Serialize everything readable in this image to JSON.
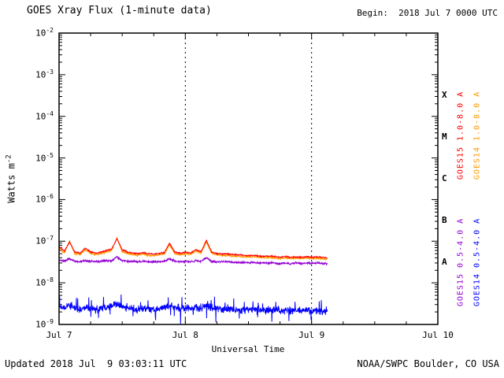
{
  "header": {
    "title": "GOES Xray Flux (1-minute data)",
    "begin": "Begin:  2018 Jul 7 0000 UTC"
  },
  "footer": {
    "updated": "Updated 2018 Jul  9 03:03:11 UTC",
    "source": "NOAA/SWPC Boulder, CO USA"
  },
  "chart_data": {
    "type": "line",
    "title": "GOES Xray Flux (1-minute data)",
    "xlabel": "Universal Time",
    "ylabel": "Watts m-2",
    "ylabel_base": "Watts m",
    "ylabel_exp": "-2",
    "x_tick_labels": [
      "Jul 7",
      "Jul 8",
      "Jul 9",
      "Jul 10"
    ],
    "x_tick_hours": [
      0,
      24,
      48,
      72
    ],
    "x_range_hours": [
      0,
      72
    ],
    "x_minor_step_hours": 6,
    "y_log_range": [
      -9,
      -2
    ],
    "y_tick_exponents": [
      -2,
      -3,
      -4,
      -5,
      -6,
      -7,
      -8,
      -9
    ],
    "grid_dashed_hours": [
      24,
      48
    ],
    "flux_classes": [
      {
        "label": "X",
        "log_center": -3.5
      },
      {
        "label": "M",
        "log_center": -4.5
      },
      {
        "label": "C",
        "log_center": -5.5
      },
      {
        "label": "B",
        "log_center": -6.5
      },
      {
        "label": "A",
        "log_center": -7.5
      }
    ],
    "sample_interval_hours": 1,
    "series": [
      {
        "name": "GOES15 1.0-8.0 A",
        "color": "#ff0000",
        "noise_log": 0.02,
        "seed": 11,
        "values": [
          7.5e-08,
          5.8e-08,
          9.5e-08,
          5.5e-08,
          5.2e-08,
          6.8e-08,
          5.6e-08,
          5.2e-08,
          5.5e-08,
          6e-08,
          6.5e-08,
          1.15e-07,
          6.2e-08,
          5.5e-08,
          5.2e-08,
          5e-08,
          5.3e-08,
          5e-08,
          4.9e-08,
          5.1e-08,
          5.3e-08,
          9e-08,
          5.5e-08,
          5.1e-08,
          5.4e-08,
          5.2e-08,
          6.3e-08,
          5.6e-08,
          1.05e-07,
          5.5e-08,
          5.1e-08,
          4.9e-08,
          5e-08,
          4.8e-08,
          4.7e-08,
          4.6e-08,
          4.5e-08,
          4.6e-08,
          4.4e-08,
          4.3e-08,
          4.4e-08,
          4.3e-08,
          4.1e-08,
          4.3e-08,
          4.1e-08,
          4.2e-08,
          4.1e-08,
          4.3e-08,
          4.1e-08,
          4.2e-08,
          4.1e-08,
          4e-08
        ]
      },
      {
        "name": "GOES14 1.0-8.0 A",
        "color": "#ff9900",
        "noise_log": 0.025,
        "seed": 22,
        "values": [
          6.8e-08,
          5.2e-08,
          1e-07,
          5e-08,
          4.8e-08,
          6.2e-08,
          5.1e-08,
          4.8e-08,
          5e-08,
          5.5e-08,
          6e-08,
          1.2e-07,
          5.6e-08,
          5e-08,
          4.8e-08,
          4.6e-08,
          4.9e-08,
          4.6e-08,
          4.5e-08,
          4.7e-08,
          4.9e-08,
          8.2e-08,
          5e-08,
          4.7e-08,
          5e-08,
          4.8e-08,
          5.8e-08,
          5.2e-08,
          9.6e-08,
          5.1e-08,
          4.7e-08,
          4.5e-08,
          4.6e-08,
          4.4e-08,
          4.3e-08,
          4.2e-08,
          4.2e-08,
          4.3e-08,
          4.1e-08,
          4e-08,
          4.1e-08,
          4e-08,
          3.8e-08,
          4e-08,
          3.8e-08,
          3.9e-08,
          3.8e-08,
          4e-08,
          3.8e-08,
          3.9e-08,
          3.8e-08,
          3.7e-08
        ]
      },
      {
        "name": "GOES15 0.5-4.0 A",
        "color": "#9400d3",
        "noise_log": 0.035,
        "seed": 33,
        "values": [
          3.5e-08,
          3.3e-08,
          3.8e-08,
          3.3e-08,
          3.2e-08,
          3.4e-08,
          3.3e-08,
          3.2e-08,
          3.3e-08,
          3.4e-08,
          3.4e-08,
          4.2e-08,
          3.4e-08,
          3.3e-08,
          3.3e-08,
          3.2e-08,
          3.3e-08,
          3.2e-08,
          3.2e-08,
          3.2e-08,
          3.3e-08,
          3.8e-08,
          3.3e-08,
          3.2e-08,
          3.3e-08,
          3.2e-08,
          3.4e-08,
          3.3e-08,
          4e-08,
          3.3e-08,
          3.2e-08,
          3.2e-08,
          3.2e-08,
          3.1e-08,
          3.1e-08,
          3.1e-08,
          3e-08,
          3.1e-08,
          3e-08,
          3e-08,
          3e-08,
          3e-08,
          2.9e-08,
          3e-08,
          2.9e-08,
          3e-08,
          2.9e-08,
          3e-08,
          2.9e-08,
          3e-08,
          2.9e-08,
          2.9e-08
        ]
      },
      {
        "name": "GOES14 0.5-4.0 A",
        "color": "#0000ff",
        "noise_log": 0.13,
        "seed": 44,
        "values": [
          2.8e-09,
          2.4e-09,
          3e-09,
          2.5e-09,
          2.2e-09,
          2.6e-09,
          2.4e-09,
          2.3e-09,
          2.5e-09,
          2.6e-09,
          2.8e-09,
          3.2e-09,
          2.6e-09,
          2.5e-09,
          2.4e-09,
          2.3e-09,
          2.5e-09,
          2.4e-09,
          2.3e-09,
          2.4e-09,
          2.5e-09,
          2.9e-09,
          2.5e-09,
          2.4e-09,
          2.5e-09,
          2.4e-09,
          2.6e-09,
          2.5e-09,
          3e-09,
          2.5e-09,
          2.4e-09,
          2.3e-09,
          2.4e-09,
          2.3e-09,
          2.3e-09,
          2.2e-09,
          2.2e-09,
          2.3e-09,
          2.2e-09,
          2.2e-09,
          2.2e-09,
          2.2e-09,
          2.1e-09,
          2.2e-09,
          2.1e-09,
          2.2e-09,
          2.1e-09,
          2.2e-09,
          2.1e-09,
          2.2e-09,
          2.1e-09,
          2.1e-09
        ]
      }
    ],
    "right_labels": [
      {
        "text": "GOES15 1.0-8.0 A",
        "color": "#ff0000"
      },
      {
        "text": "GOES14 1.0-8.0 A",
        "color": "#ff9900"
      },
      {
        "text": "GOES15 0.5-4.0 A",
        "color": "#9400d3"
      },
      {
        "text": "GOES14 0.5-4.0 A",
        "color": "#0000ff"
      }
    ]
  }
}
